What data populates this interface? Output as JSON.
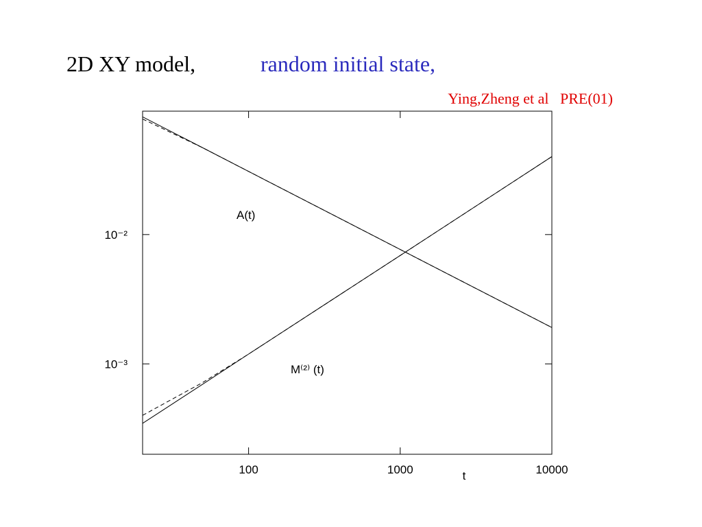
{
  "chart_data": {
    "type": "line",
    "title": "2D XY model,",
    "subtitle": "random initial state,",
    "citation": "Ying,Zheng et al   PRE(01)",
    "xlabel": "t",
    "annotations": [
      "A(t)",
      "M⁽²⁾ (t)"
    ],
    "xscale": "log",
    "yscale": "log",
    "xlim": [
      20,
      10000
    ],
    "ylim": [
      0.0002,
      0.09
    ],
    "xticks": [
      100,
      1000,
      10000
    ],
    "yticks": [
      {
        "value": 0.01,
        "label": "10⁻²"
      },
      {
        "value": 0.001,
        "label": "10⁻³"
      }
    ],
    "series": [
      {
        "color": "#000000",
        "dash": false,
        "x": [
          20,
          50,
          100,
          1000,
          10000
        ],
        "values": [
          0.0813,
          0.0468,
          0.0308,
          0.00766,
          0.00191
        ]
      },
      {
        "color": "#000000",
        "dash": true,
        "x": [
          20,
          50,
          100,
          1000,
          10000
        ],
        "values": [
          0.0783,
          0.0468,
          0.0308,
          0.00766,
          0.00191
        ]
      },
      {
        "color": "#000000",
        "dash": false,
        "x": [
          20,
          50,
          100,
          1000,
          10000
        ],
        "values": [
          0.000347,
          0.000698,
          0.00119,
          0.00689,
          0.0401
        ]
      },
      {
        "color": "#000000",
        "dash": true,
        "x": [
          20,
          50,
          100,
          1000,
          10000
        ],
        "values": [
          0.0004,
          0.00072,
          0.00119,
          0.00689,
          0.0401
        ]
      }
    ]
  }
}
